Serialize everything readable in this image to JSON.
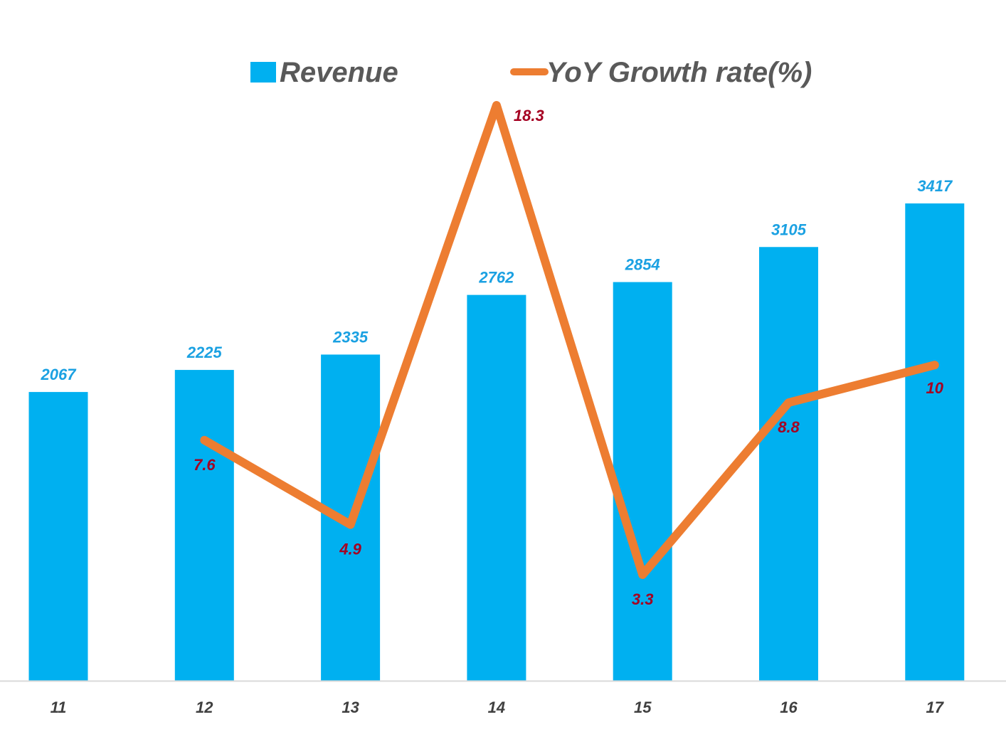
{
  "chart_data": {
    "type": "bar",
    "title": "",
    "xlabel": "",
    "ylabel": "",
    "categories": [
      "11",
      "12",
      "13",
      "14",
      "15",
      "16",
      "17"
    ],
    "series": [
      {
        "name": "Revenue",
        "kind": "bar",
        "color": "#00B0F0",
        "label_color": "#1BA1E2",
        "values": [
          2067,
          2225,
          2335,
          2762,
          2854,
          3105,
          3417
        ],
        "labels": [
          "2067",
          "2225",
          "2335",
          "2762",
          "2854",
          "3105",
          "3417"
        ]
      },
      {
        "name": "YoY Growth rate(%)",
        "kind": "line",
        "color": "#ED7D31",
        "label_color": "#A50021",
        "values": [
          null,
          7.6,
          4.9,
          18.3,
          3.3,
          8.8,
          10
        ],
        "labels": [
          "",
          "7.6",
          "4.9",
          "18.3",
          "3.3",
          "8.8",
          "10"
        ]
      }
    ],
    "legend": {
      "position": "top-center",
      "entries": [
        "Revenue",
        "YoY Growth rate(%)"
      ]
    },
    "grid": false,
    "axis_line_color": "#D9D9D9"
  }
}
